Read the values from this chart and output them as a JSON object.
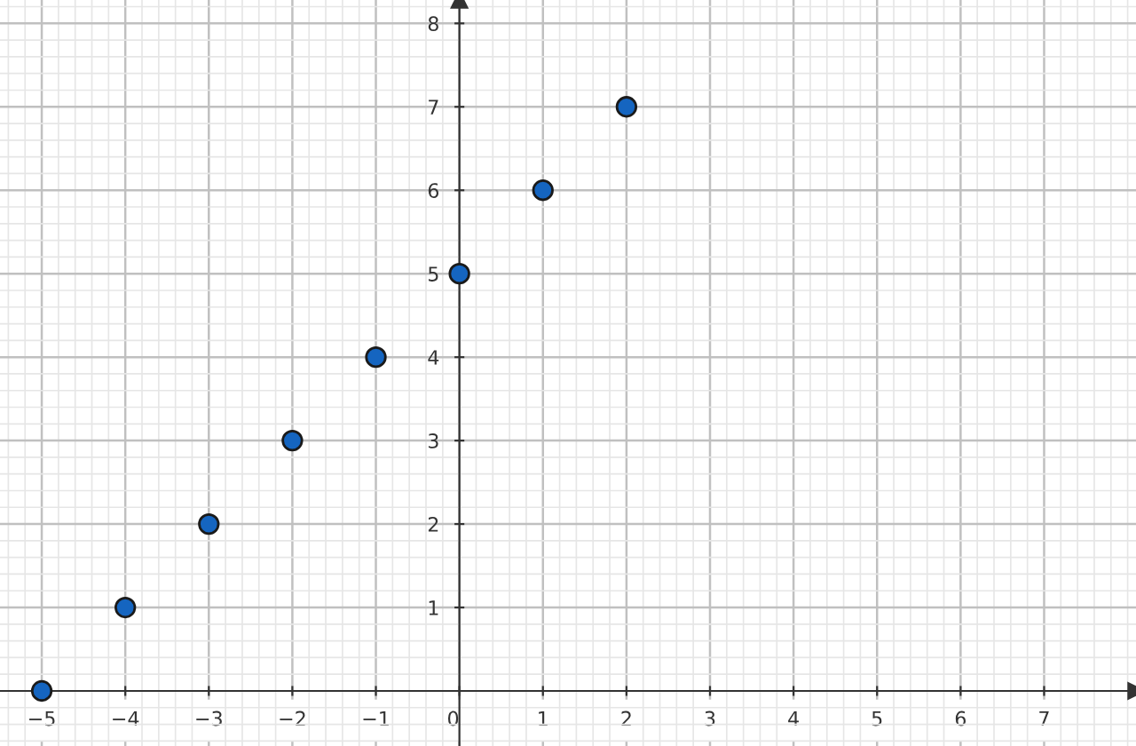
{
  "chart_data": {
    "type": "scatter",
    "x": [
      -5,
      -4,
      -3,
      -2,
      -1,
      0,
      1,
      2
    ],
    "series": [
      {
        "color": "#1565c0",
        "values": [
          0,
          1,
          2,
          3,
          4,
          5,
          6,
          7
        ]
      }
    ],
    "xlim": [
      -5.5,
      8.1
    ],
    "ylim": [
      -0.66,
      8.28
    ],
    "xticks": [
      -5,
      -4,
      -3,
      -2,
      -1,
      0,
      1,
      2,
      3,
      4,
      5,
      6,
      7
    ],
    "yticks": [
      1,
      2,
      3,
      4,
      5,
      6,
      7,
      8
    ],
    "grid": true,
    "marker": "circle"
  }
}
